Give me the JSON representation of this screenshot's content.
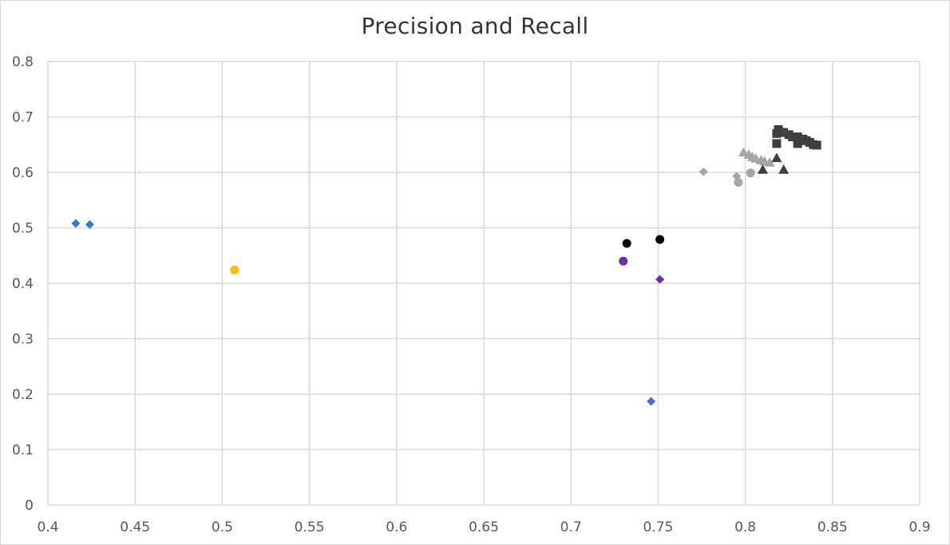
{
  "chart_data": {
    "type": "scatter",
    "title": "Precision and Recall",
    "xlabel": "",
    "ylabel": "",
    "xlim": [
      0.4,
      0.9
    ],
    "ylim": [
      0,
      0.8
    ],
    "x_ticks": [
      "0.4",
      "0.45",
      "0.5",
      "0.55",
      "0.6",
      "0.65",
      "0.7",
      "0.75",
      "0.8",
      "0.85",
      "0.9"
    ],
    "y_ticks": [
      "0",
      "0.1",
      "0.2",
      "0.3",
      "0.4",
      "0.5",
      "0.6",
      "0.7",
      "0.8"
    ],
    "grid": true,
    "legend": "none",
    "series": [
      {
        "marker": "diamond",
        "color": "#4472c4",
        "points": [
          [
            0.416,
            0.508
          ],
          [
            0.424,
            0.506
          ],
          [
            0.746,
            0.187
          ]
        ]
      },
      {
        "marker": "circle",
        "color": "#ffc000",
        "points": [
          [
            0.507,
            0.424
          ]
        ]
      },
      {
        "marker": "circle",
        "color": "#000000",
        "points": [
          [
            0.732,
            0.472
          ],
          [
            0.751,
            0.479
          ]
        ]
      },
      {
        "marker": "circle",
        "color": "#7030a0",
        "points": [
          [
            0.73,
            0.44
          ]
        ]
      },
      {
        "marker": "diamond",
        "color": "#7030a0",
        "points": [
          [
            0.751,
            0.407
          ]
        ]
      },
      {
        "marker": "diamond",
        "color": "#a5a5a5",
        "points": [
          [
            0.776,
            0.601
          ],
          [
            0.795,
            0.593
          ]
        ]
      },
      {
        "marker": "circle",
        "color": "#a5a5a5",
        "points": [
          [
            0.796,
            0.582
          ],
          [
            0.803,
            0.599
          ]
        ]
      },
      {
        "marker": "triangle",
        "color": "#a5a5a5",
        "points": [
          [
            0.799,
            0.636
          ],
          [
            0.802,
            0.632
          ],
          [
            0.804,
            0.628
          ],
          [
            0.806,
            0.625
          ],
          [
            0.809,
            0.622
          ],
          [
            0.811,
            0.62
          ],
          [
            0.814,
            0.618
          ]
        ]
      },
      {
        "marker": "triangle",
        "color": "#3f3f3f",
        "points": [
          [
            0.81,
            0.605
          ],
          [
            0.818,
            0.626
          ],
          [
            0.822,
            0.605
          ]
        ]
      },
      {
        "marker": "square",
        "color": "#3f3f3f",
        "points": [
          [
            0.818,
            0.652
          ],
          [
            0.818,
            0.67
          ],
          [
            0.819,
            0.677
          ],
          [
            0.822,
            0.672
          ],
          [
            0.825,
            0.668
          ],
          [
            0.827,
            0.664
          ],
          [
            0.83,
            0.664
          ],
          [
            0.83,
            0.652
          ],
          [
            0.833,
            0.66
          ],
          [
            0.835,
            0.657
          ],
          [
            0.837,
            0.654
          ],
          [
            0.839,
            0.65
          ],
          [
            0.841,
            0.649
          ]
        ]
      }
    ]
  }
}
